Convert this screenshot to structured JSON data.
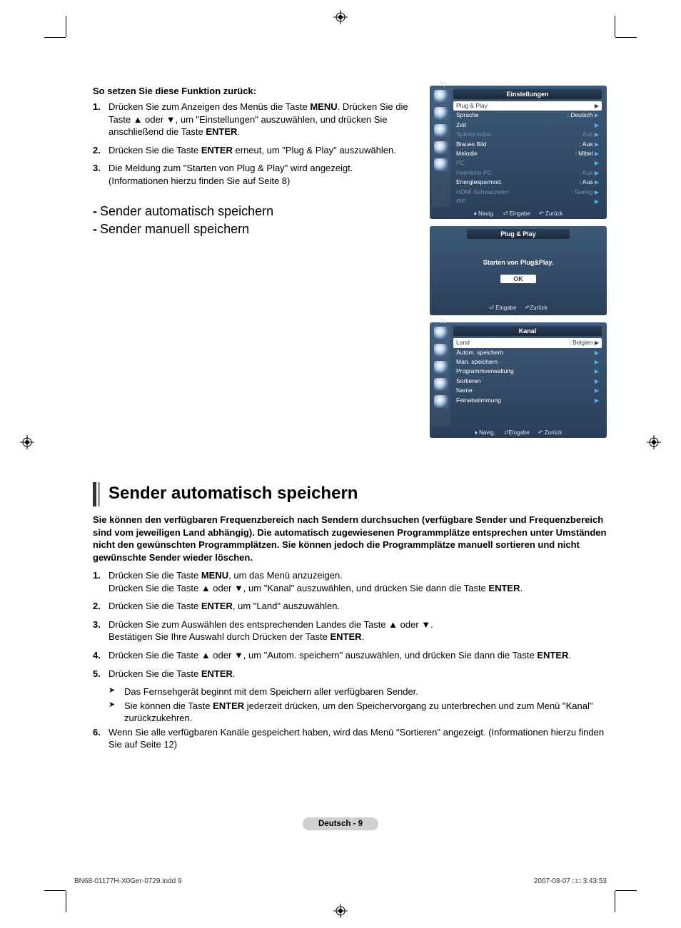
{
  "section1": {
    "heading": "So setzen Sie diese Funktion zurück:",
    "steps": [
      {
        "num": "1.",
        "html": "Drücken Sie zum Anzeigen des Menüs die Taste <strong>MENU</strong>. Drücken Sie die Taste ▲ oder ▼, um \"Einstellungen\" auszuwählen, und drücken Sie anschließend die Taste <strong>ENTER</strong>."
      },
      {
        "num": "2.",
        "html": "Drücken Sie die Taste <strong>ENTER</strong> erneut, um \"Plug & Play\" auszuwählen."
      },
      {
        "num": "3.",
        "html": "Die Meldung zum \"Starten von Plug & Play\" wird angezeigt. (Informationen hierzu finden Sie auf Seite 8)"
      }
    ],
    "bullets": [
      "Sender automatisch speichern",
      "Sender manuell speichern"
    ]
  },
  "osd1": {
    "tv": "TV",
    "title": "Einstellungen",
    "rows": [
      {
        "label": "Plug & Play",
        "value": "",
        "sel": true
      },
      {
        "label": "Sprache",
        "value": ": Deutsch"
      },
      {
        "label": "Zeit",
        "value": ""
      },
      {
        "label": "Spielemodus",
        "value": ": Aus",
        "dim": true
      },
      {
        "label": "Blaues Bild",
        "value": ": Aus"
      },
      {
        "label": "Melodie",
        "value": ": Mittel"
      },
      {
        "label": "PC",
        "value": "",
        "dim": true
      },
      {
        "label": "Heimkino-PC",
        "value": ": Aus",
        "dim": true
      },
      {
        "label": "Energiesparmod.",
        "value": ": Aus"
      },
      {
        "label": "HDMI-Schwarzwert",
        "value": ": Gering",
        "dim": true
      },
      {
        "label": "PIP",
        "value": "",
        "dim": true
      }
    ],
    "footer": {
      "nav": "Navig.",
      "enter": "Eingabe",
      "back": "Zurück"
    }
  },
  "osd_dialog": {
    "title": "Plug & Play",
    "message": "Starten von Plug&Play.",
    "button": "OK",
    "footer_enter": "Eingabe",
    "footer_back": "Zurück"
  },
  "osd3": {
    "tv": "TV",
    "title": "Kanal",
    "rows": [
      {
        "label": "Land",
        "value": ": Belgien",
        "sel": true
      },
      {
        "label": "Autom. speichern",
        "value": ""
      },
      {
        "label": "Man. speichern",
        "value": ""
      },
      {
        "label": "Programmverwaltung",
        "value": ""
      },
      {
        "label": "Sortieren",
        "value": ""
      },
      {
        "label": "Name",
        "value": ""
      },
      {
        "label": "Feinabstimmung",
        "value": ""
      }
    ],
    "footer": {
      "nav": "Navig.",
      "enter": "Eingabe",
      "back": "Zurück"
    }
  },
  "section2": {
    "heading": "Sender automatisch speichern",
    "intro": "Sie können den verfügbaren Frequenzbereich nach Sendern durchsuchen (verfügbare Sender und Frequenzbereich sind vom jeweiligen Land abhängig). Die automatisch zugewiesenen Programmplätze entsprechen unter Umständen nicht den gewünschten Programmplätzen. Sie können jedoch die Programmplätze manuell sortieren und nicht gewünschte Sender wieder löschen.",
    "steps": [
      {
        "num": "1.",
        "html": "Drücken Sie die Taste <strong>MENU</strong>, um das Menü anzuzeigen.<br>Drücken Sie die Taste ▲ oder ▼, um \"Kanal\" auszuwählen, und drücken Sie dann die Taste <strong>ENTER</strong>."
      },
      {
        "num": "2.",
        "html": "Drücken Sie die Taste <strong>ENTER</strong>, um \"Land\" auszuwählen."
      },
      {
        "num": "3.",
        "html": "Drücken Sie zum Auswählen des entsprechenden Landes die Taste ▲ oder ▼.<br>Bestätigen Sie Ihre Auswahl durch Drücken der Taste <strong>ENTER</strong>."
      },
      {
        "num": "4.",
        "html": "Drücken Sie die Taste ▲ oder ▼, um \"Autom. speichern\" auszuwählen, und drücken Sie dann die Taste <strong>ENTER</strong>."
      },
      {
        "num": "5.",
        "html": "Drücken Sie die Taste <strong>ENTER</strong>."
      }
    ],
    "notes": [
      "Das Fernsehgerät beginnt mit dem Speichern aller verfügbaren Sender.",
      "Sie können die Taste <strong>ENTER</strong> jederzeit drücken, um den Speichervorgang zu unterbrechen und zum Menü \"Kanal\" zurückzukehren."
    ],
    "step6": {
      "num": "6.",
      "html": "Wenn Sie alle verfügbaren Kanäle gespeichert haben, wird das Menü \"Sortieren\" angezeigt. (Informationen hierzu finden Sie auf Seite 12)"
    }
  },
  "page_footer": "Deutsch - 9",
  "print_footer": {
    "left": "BN68-01177H-X0Ger-0729.indd   9",
    "right": "2007-08-07   □□ 3:43:53"
  }
}
